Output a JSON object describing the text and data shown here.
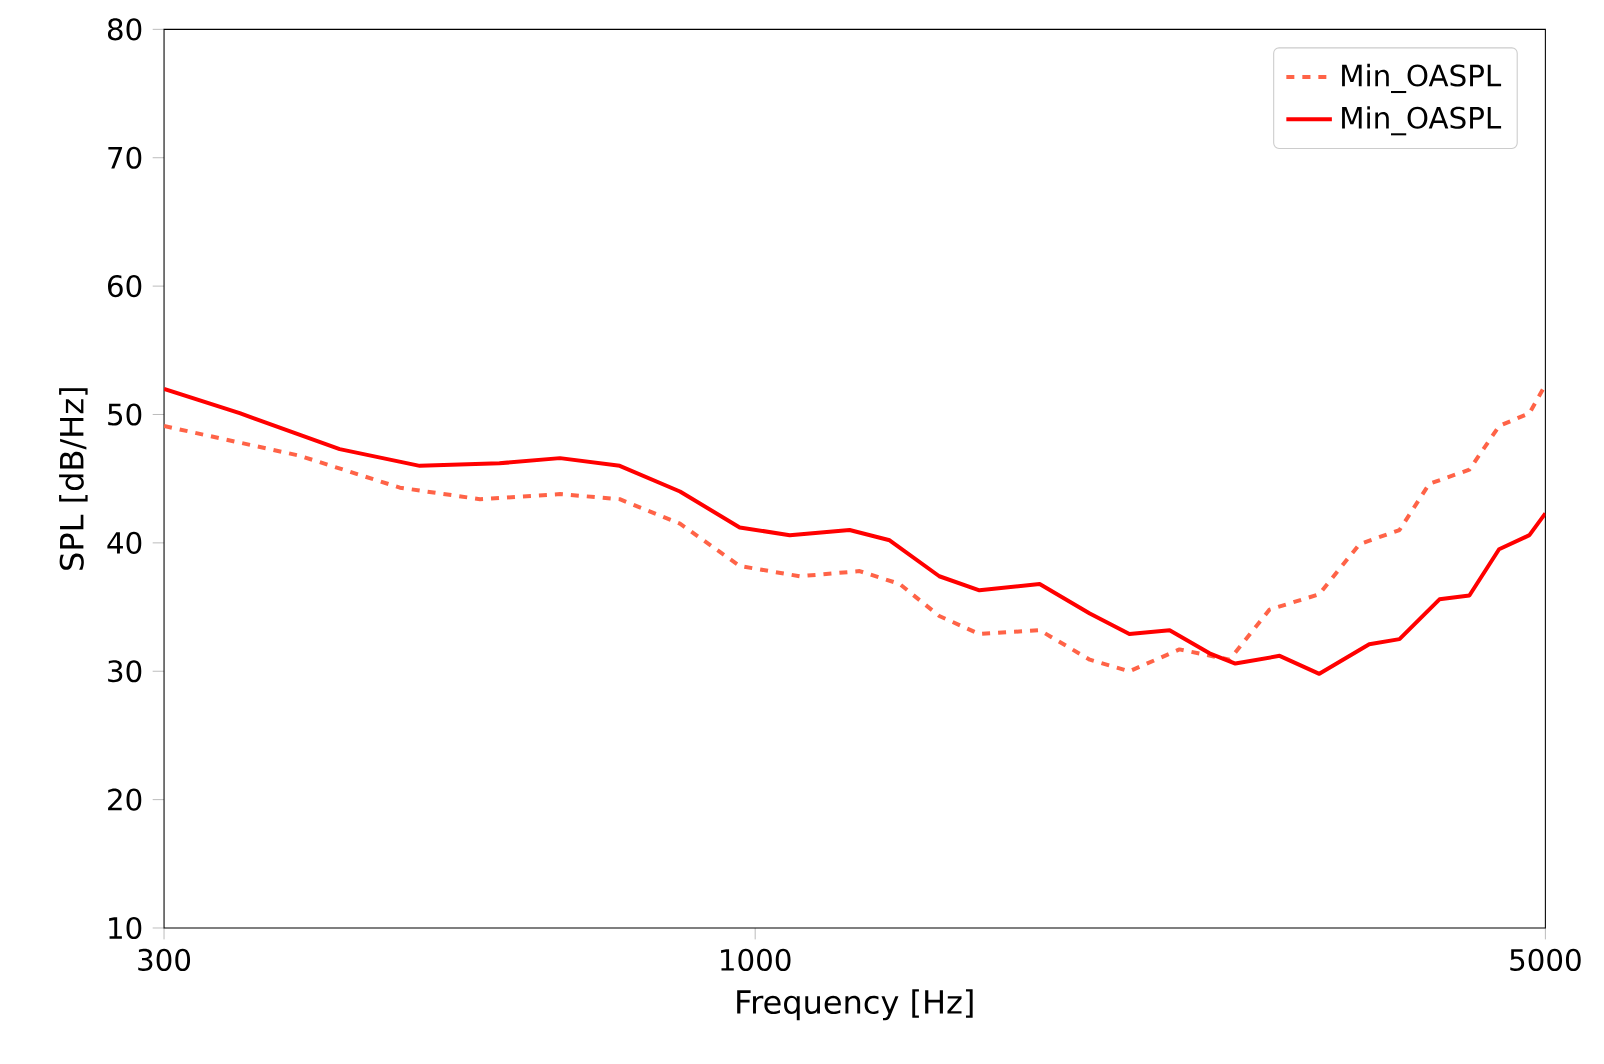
{
  "chart_data": {
    "type": "line",
    "xlabel": "Frequency [Hz]",
    "ylabel": "SPL [dB/Hz]",
    "log": "x",
    "xlim": [
      300,
      5000
    ],
    "xticks": [
      300,
      1000,
      5000
    ],
    "ylim": [
      10,
      80
    ],
    "yticks": [
      10,
      20,
      30,
      40,
      50,
      60,
      70,
      80
    ],
    "grid": false,
    "legend": "top right",
    "series": [
      {
        "name": "Min_OASPL",
        "color": "#ff6347",
        "line_style": "dashed",
        "x": [
          300,
          395,
          485,
          571,
          672,
          759,
          858,
          969,
          1095,
          1237,
          1342,
          1455,
          1579,
          1785,
          1977,
          2143,
          2373,
          2628,
          2851,
          3155,
          3424,
          3715,
          3948,
          4283,
          4550,
          4840,
          5000
        ],
        "values": [
          49.1,
          46.8,
          44.3,
          43.4,
          43.8,
          43.4,
          41.5,
          38.2,
          37.4,
          37.8,
          36.8,
          34.3,
          32.9,
          33.2,
          30.9,
          30.0,
          31.7,
          30.9,
          34.8,
          36.0,
          39.9,
          41.0,
          44.6,
          45.7,
          49.1,
          50.1,
          52.3
        ]
      },
      {
        "name": "Min_OASPL",
        "color": "#ff0000",
        "line_style": "solid",
        "x": [
          300,
          350,
          429,
          505,
          594,
          672,
          759,
          858,
          969,
          1073,
          1212,
          1315,
          1455,
          1579,
          1785,
          1977,
          2143,
          2326,
          2523,
          2659,
          2910,
          3155,
          3493,
          3715,
          4030,
          4283,
          4550,
          4840,
          5000
        ],
        "values": [
          52.0,
          50.1,
          47.3,
          46.0,
          46.2,
          46.6,
          46.0,
          44.0,
          41.2,
          40.6,
          41.0,
          40.2,
          37.4,
          36.3,
          36.8,
          34.5,
          32.9,
          33.2,
          31.4,
          30.6,
          31.2,
          29.8,
          32.1,
          32.5,
          35.6,
          35.9,
          39.5,
          40.6,
          42.3
        ]
      }
    ]
  }
}
